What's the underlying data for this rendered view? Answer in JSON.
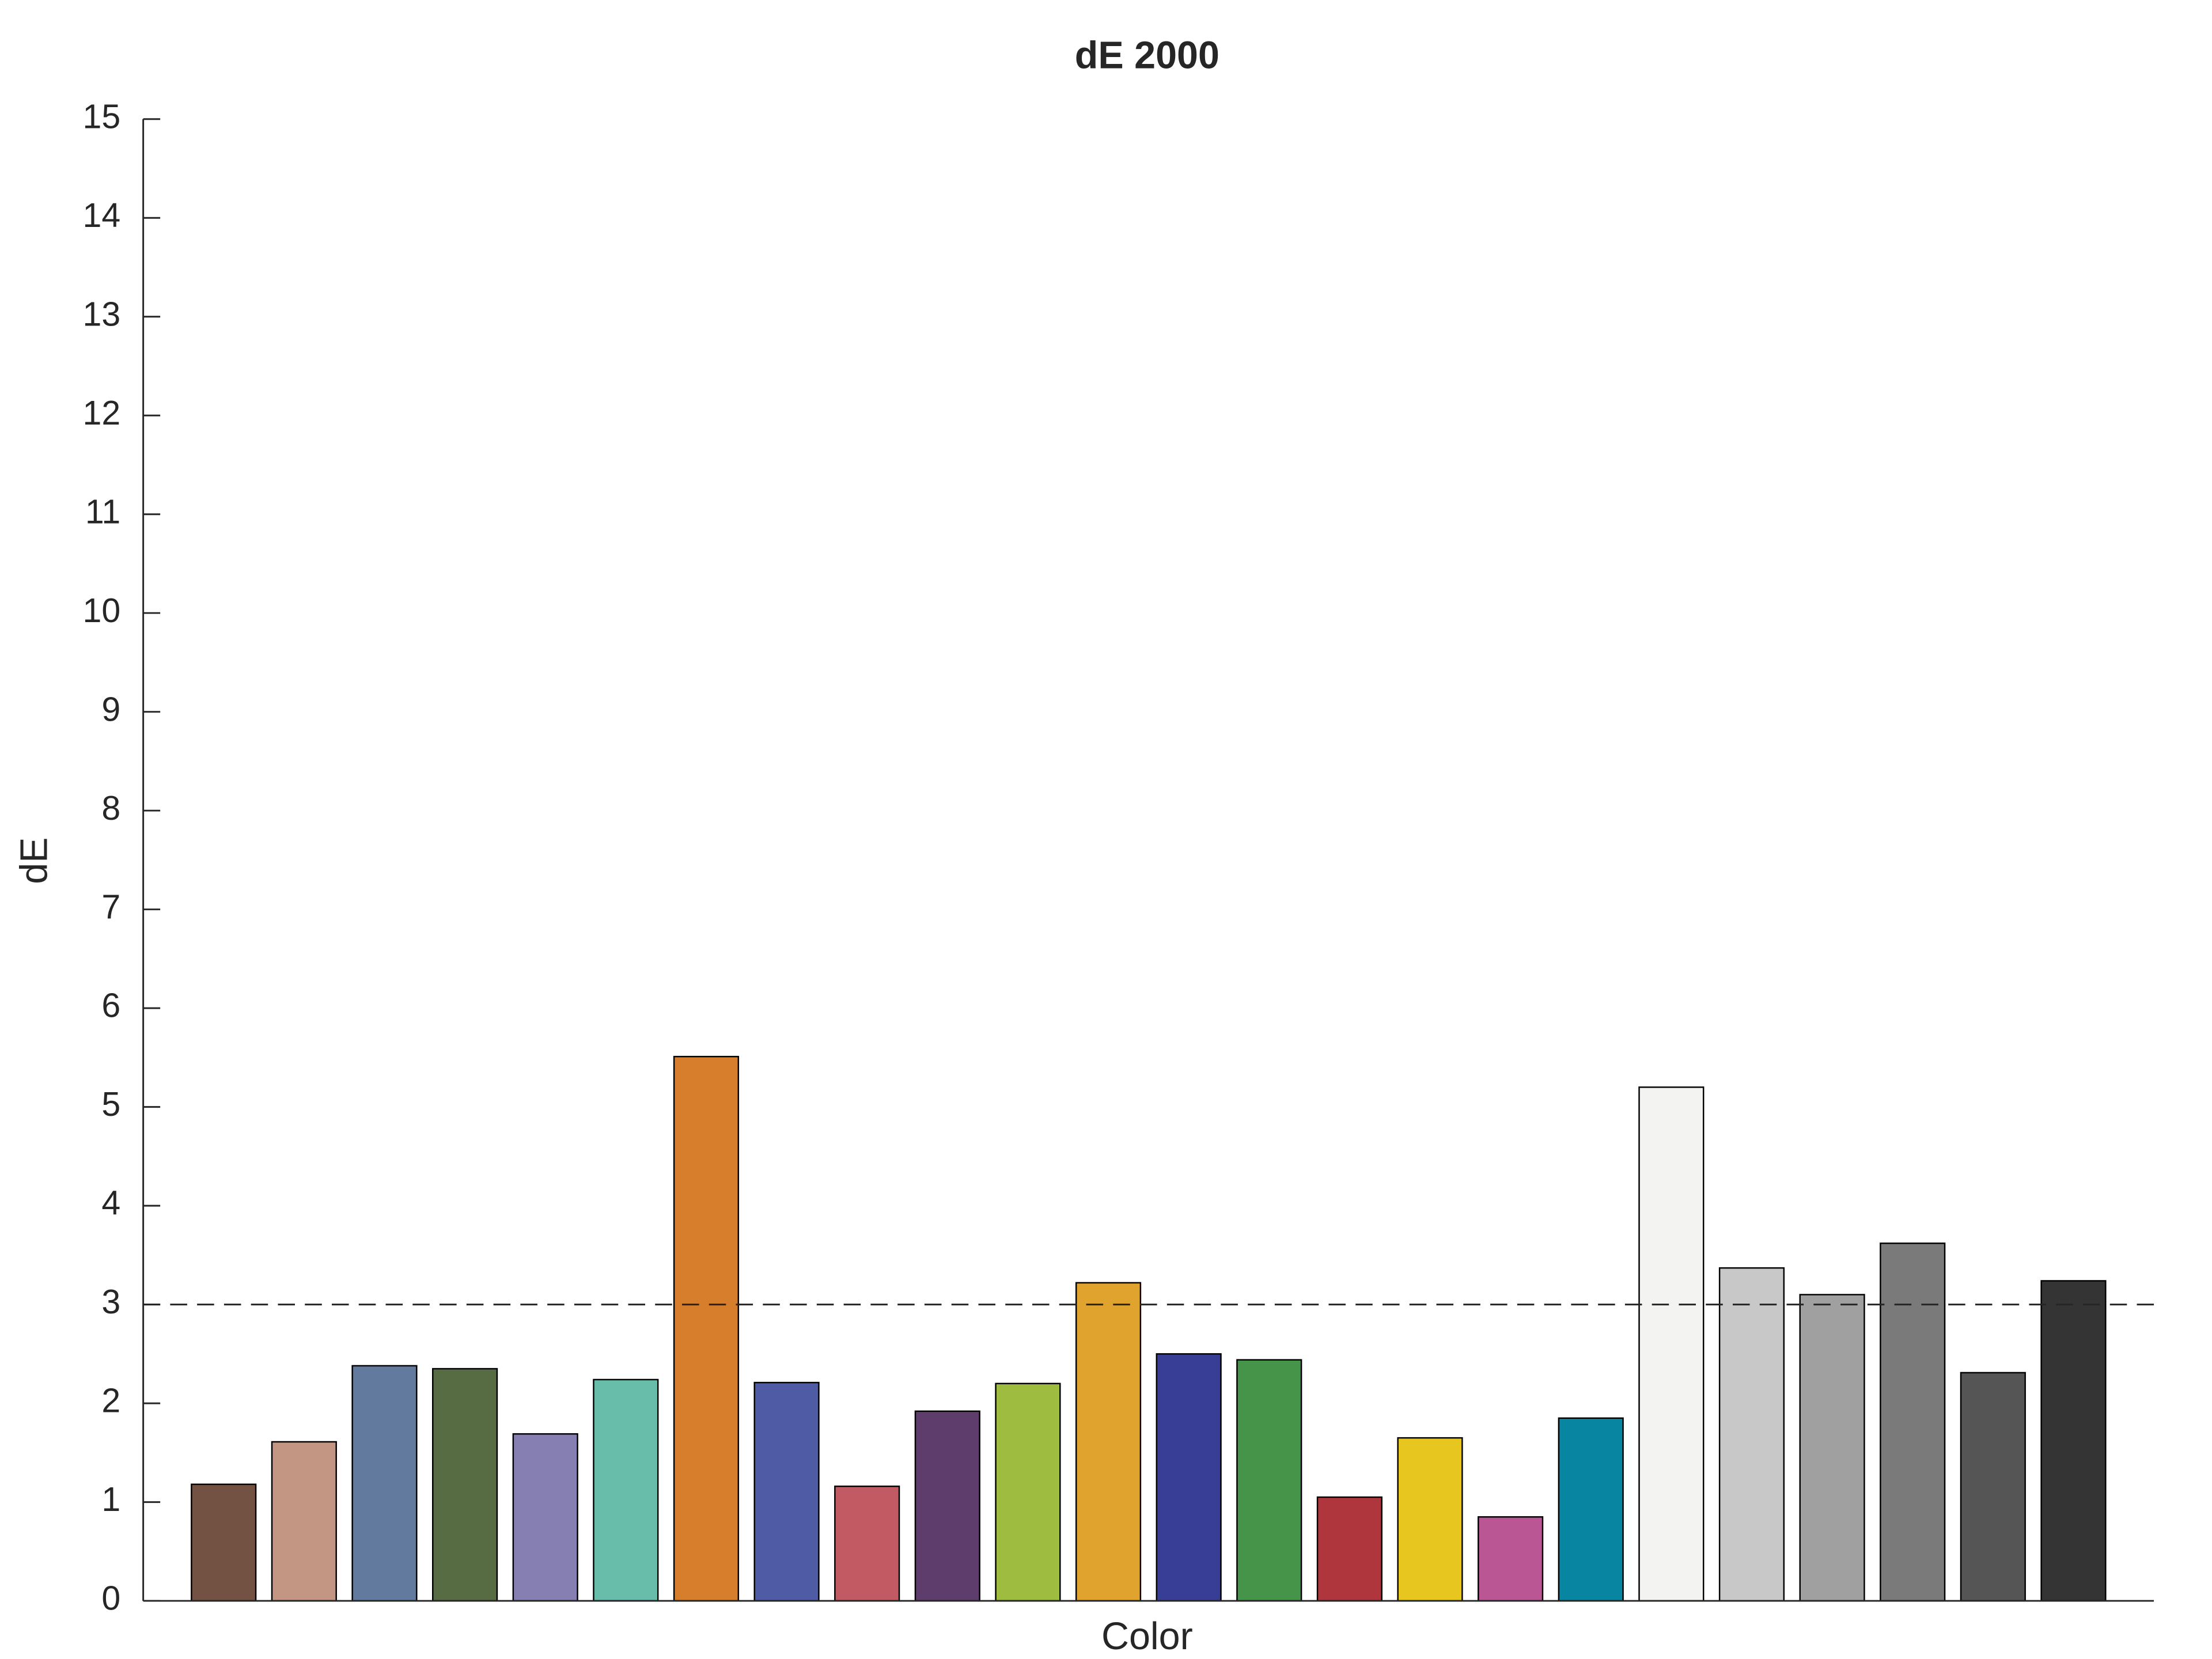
{
  "chart_data": {
    "type": "bar",
    "title": "dE 2000",
    "xlabel": "Color",
    "ylabel": "dE",
    "values": [
      1.18,
      1.61,
      2.38,
      2.35,
      1.69,
      2.24,
      5.51,
      2.21,
      1.16,
      1.92,
      2.2,
      3.22,
      2.5,
      2.44,
      1.05,
      1.65,
      0.85,
      1.85,
      5.2,
      3.37,
      3.1,
      3.62,
      2.31,
      3.24
    ],
    "colors": [
      "#735244",
      "#c29682",
      "#627a9d",
      "#576c43",
      "#8580b1",
      "#67bdaa",
      "#d67e2c",
      "#505ba6",
      "#c15a63",
      "#5e3c6c",
      "#9dbc40",
      "#e0a32e",
      "#383d96",
      "#469449",
      "#af363c",
      "#e7c71f",
      "#bb5695",
      "#0885a1",
      "#f3f3f2",
      "#c8c8c8",
      "#a0a0a0",
      "#7a7a7a",
      "#555555",
      "#343434"
    ],
    "reference_line": 3,
    "ylim": [
      0,
      15
    ],
    "yticks": [
      0,
      1,
      2,
      3,
      4,
      5,
      6,
      7,
      8,
      9,
      10,
      11,
      12,
      13,
      14,
      15
    ]
  }
}
